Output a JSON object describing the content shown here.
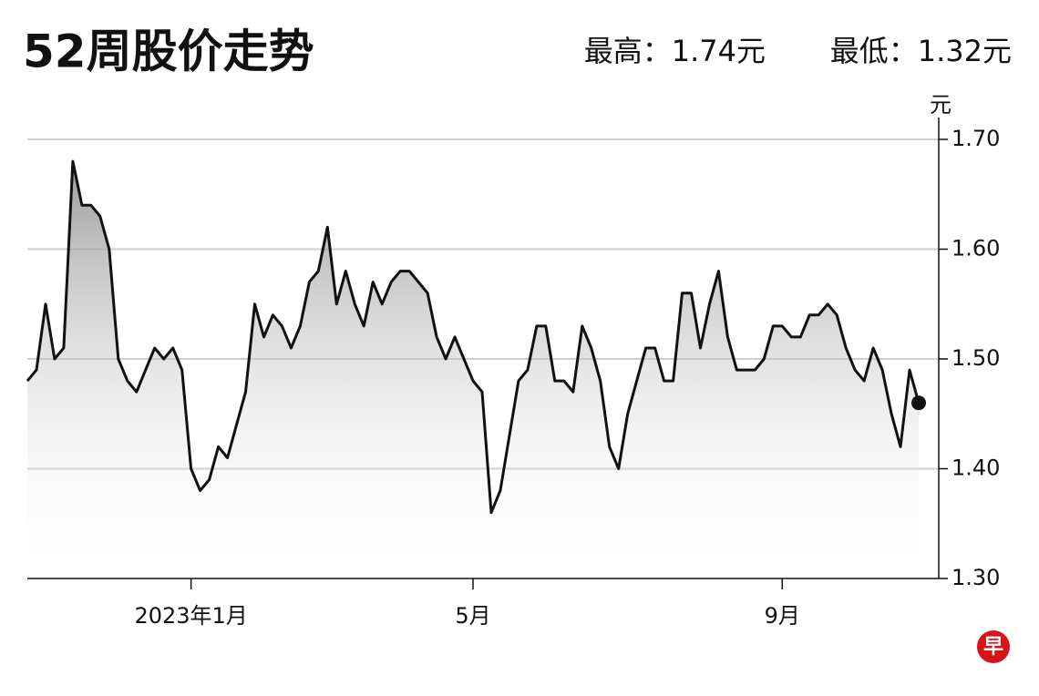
{
  "chart_data": {
    "type": "line",
    "title": "52周股价走势",
    "high_label": "最高：1.74元",
    "low_label": "最低：1.32元",
    "y_unit": "元",
    "logo": "早",
    "color": "#111111",
    "grid": true,
    "categories": [
      null,
      null,
      null,
      null,
      null,
      null,
      null,
      null,
      null,
      null,
      null,
      null,
      null,
      null,
      null,
      null,
      null,
      null,
      "2023年1月",
      null,
      null,
      null,
      null,
      null,
      null,
      null,
      null,
      null,
      null,
      null,
      null,
      null,
      null,
      null,
      null,
      null,
      null,
      null,
      null,
      null,
      null,
      null,
      null,
      null,
      null,
      null,
      null,
      null,
      null,
      "5月",
      null,
      null,
      null,
      null,
      null,
      null,
      null,
      null,
      null,
      null,
      null,
      null,
      null,
      null,
      null,
      null,
      null,
      null,
      null,
      null,
      null,
      null,
      null,
      null,
      null,
      null,
      null,
      null,
      null,
      null,
      null,
      null,
      null,
      "9月",
      null,
      null,
      null,
      null,
      null,
      null,
      null,
      null,
      null,
      null,
      null,
      null,
      null,
      null,
      null
    ],
    "values": [
      1.48,
      1.49,
      1.55,
      1.5,
      1.51,
      1.68,
      1.64,
      1.64,
      1.63,
      1.6,
      1.5,
      1.48,
      1.47,
      1.49,
      1.51,
      1.5,
      1.51,
      1.49,
      1.4,
      1.38,
      1.39,
      1.42,
      1.41,
      1.44,
      1.47,
      1.55,
      1.52,
      1.54,
      1.53,
      1.51,
      1.53,
      1.57,
      1.58,
      1.62,
      1.55,
      1.58,
      1.55,
      1.53,
      1.57,
      1.55,
      1.57,
      1.58,
      1.58,
      1.57,
      1.56,
      1.52,
      1.5,
      1.52,
      1.5,
      1.48,
      1.47,
      1.36,
      1.38,
      1.43,
      1.48,
      1.49,
      1.53,
      1.53,
      1.48,
      1.48,
      1.47,
      1.53,
      1.51,
      1.48,
      1.42,
      1.4,
      1.45,
      1.48,
      1.51,
      1.51,
      1.48,
      1.48,
      1.56,
      1.56,
      1.51,
      1.55,
      1.58,
      1.52,
      1.49,
      1.49,
      1.49,
      1.5,
      1.53,
      1.53,
      1.52,
      1.52,
      1.54,
      1.54,
      1.55,
      1.54,
      1.51,
      1.49,
      1.48,
      1.51,
      1.49,
      1.45,
      1.42,
      1.49,
      1.46
    ],
    "ylim": [
      1.3,
      1.72
    ],
    "yticks": [
      {
        "value": 1.3,
        "label": "1.30"
      },
      {
        "value": 1.4,
        "label": "1.40"
      },
      {
        "value": 1.5,
        "label": "1.50"
      },
      {
        "value": 1.6,
        "label": "1.60"
      },
      {
        "value": 1.7,
        "label": "1.70"
      }
    ]
  }
}
